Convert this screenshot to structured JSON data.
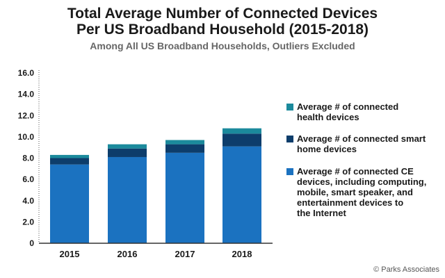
{
  "title_line1": "Total Average Number of Connected Devices",
  "title_line2": "Per US Broadband Household (2015-2018)",
  "subtitle": "Among All US Broadband Households, Outliers Excluded",
  "credit": "© Parks Associates",
  "colors": {
    "health": "#1b8a9c",
    "smart_home": "#0d3d6b",
    "ce": "#1b72c0"
  },
  "chart_data": {
    "type": "bar",
    "stacked": true,
    "categories": [
      "2015",
      "2016",
      "2017",
      "2018"
    ],
    "series": [
      {
        "name": "Average # of connected CE devices, including computing, mobile, smart speaker, and entertainment devices to the Internet",
        "values": [
          7.4,
          8.1,
          8.5,
          9.1
        ]
      },
      {
        "name": "Average # of connected smart home devices",
        "values": [
          0.6,
          0.8,
          0.8,
          1.2
        ]
      },
      {
        "name": "Average # of connected health devices",
        "values": [
          0.3,
          0.4,
          0.4,
          0.5
        ]
      }
    ],
    "ylim": [
      0,
      16
    ],
    "yticks": [
      "0",
      "2.0",
      "4.0",
      "6.0",
      "8.0",
      "10.0",
      "12.0",
      "14.0",
      "16.0"
    ],
    "legend_position": "right"
  },
  "legend": [
    {
      "key": "health",
      "lines": [
        "Average # of connected",
        "health devices"
      ]
    },
    {
      "key": "smart_home",
      "lines": [
        "Average # of connected smart",
        "home devices"
      ]
    },
    {
      "key": "ce",
      "lines": [
        "Average # of connected CE",
        "devices, including computing,",
        "mobile, smart speaker, and",
        "entertainment devices to",
        "the Internet"
      ]
    }
  ]
}
